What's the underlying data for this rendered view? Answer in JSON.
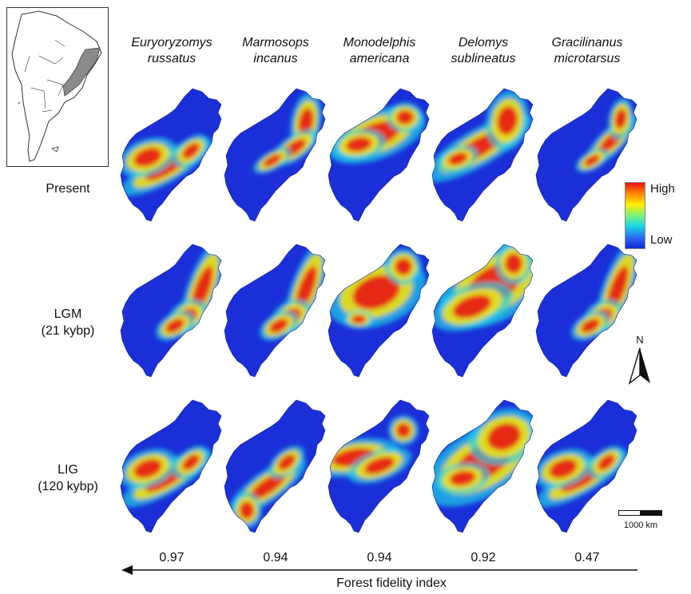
{
  "species": [
    {
      "genus": "Euryoryzomys",
      "epithet": "russatus"
    },
    {
      "genus": "Marmosops",
      "epithet": "incanus"
    },
    {
      "genus": "Monodelphis",
      "epithet": "americana"
    },
    {
      "genus": "Delomys",
      "epithet": "sublineatus"
    },
    {
      "genus": "Gracilinanus",
      "epithet": "microtarsus"
    }
  ],
  "rows": [
    {
      "line1": "Present",
      "line2": ""
    },
    {
      "line1": "LGM",
      "line2": "(21 kybp)"
    },
    {
      "line1": "LIG",
      "line2": "(120 kybp)"
    }
  ],
  "legend": {
    "high": "High",
    "low": "Low",
    "colors": [
      "#e8101a",
      "#ff8a00",
      "#ffee00",
      "#7cf27a",
      "#18d5e8",
      "#2a6cf0",
      "#1428d8"
    ]
  },
  "north_label": "N",
  "scale_bar_label": "1000 km",
  "fidelity_values": [
    "0.97",
    "0.94",
    "0.94",
    "0.92",
    "0.47"
  ],
  "axis_label": "Forest fidelity index",
  "palette": {
    "low": "#1a2fd8",
    "mid": "#20d0e8",
    "midhigh": "#f0e010",
    "high": "#e81818"
  },
  "suitability": [
    [
      "high-south-coast",
      "high-north-coast",
      "high-central",
      "mid-high-central",
      "high-central-east"
    ],
    [
      "high-east-coast",
      "high-east-coast",
      "high-central-west",
      "high-widespread",
      "high-east-coast"
    ],
    [
      "high-south-coast",
      "high-south",
      "high-central-band",
      "mid-high-widespread",
      "high-south-coast"
    ]
  ]
}
